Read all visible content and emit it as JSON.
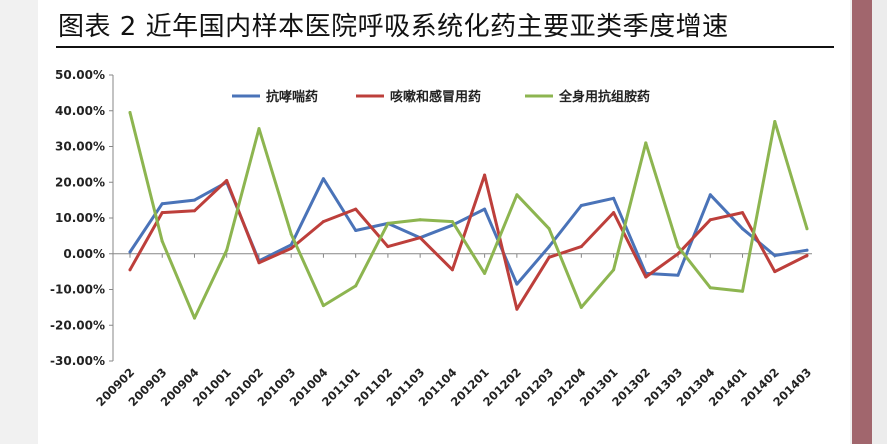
{
  "page": {
    "title": "图表 2  近年国内样本医院呼吸系统化药主要亚类季度增速",
    "colors": {
      "sheet": "#ffffff",
      "band": "#a1666d",
      "axis": "#878787",
      "text": "#222222"
    }
  },
  "chart_data": {
    "type": "line",
    "title": "",
    "xlabel": "",
    "ylabel": "",
    "categories": [
      "200902",
      "200903",
      "200904",
      "201001",
      "201002",
      "201003",
      "201004",
      "201101",
      "201102",
      "201103",
      "201104",
      "201201",
      "201202",
      "201203",
      "201204",
      "201301",
      "201302",
      "201303",
      "201304",
      "201401",
      "201402",
      "201403"
    ],
    "ylim": [
      -30,
      50
    ],
    "yticks": [
      -30,
      -20,
      -10,
      0,
      10,
      20,
      30,
      40,
      50
    ],
    "ytick_labels": [
      "-30.00%",
      "-20.00%",
      "-10.00%",
      "0.00%",
      "10.00%",
      "20.00%",
      "30.00%",
      "40.00%",
      "50.00%"
    ],
    "grid": false,
    "legend_position": "top",
    "series": [
      {
        "name": "抗哮喘药",
        "color": "#4a73b8",
        "values": [
          0.5,
          14.0,
          15.0,
          20.0,
          -2.0,
          2.5,
          21.0,
          6.5,
          8.5,
          4.5,
          8.0,
          12.5,
          -8.5,
          2.0,
          13.5,
          15.5,
          -5.5,
          -6.0,
          16.5,
          7.0,
          -0.5,
          1.0
        ]
      },
      {
        "name": "咳嗽和感冒用药",
        "color": "#bd3f3b",
        "values": [
          -4.5,
          11.5,
          12.0,
          20.5,
          -2.5,
          1.5,
          9.0,
          12.5,
          2.0,
          4.5,
          -4.5,
          22.0,
          -15.5,
          -1.0,
          2.0,
          11.5,
          -6.5,
          0.0,
          9.5,
          11.5,
          -5.0,
          -0.5
        ]
      },
      {
        "name": "全身用抗组胺药",
        "color": "#8db550",
        "values": [
          39.5,
          3.5,
          -18.0,
          1.0,
          35.0,
          5.5,
          -14.5,
          -9.0,
          8.5,
          9.5,
          9.0,
          -5.5,
          16.5,
          7.0,
          -15.0,
          -4.5,
          31.0,
          2.0,
          -9.5,
          -10.5,
          37.0,
          7.0
        ]
      }
    ]
  }
}
